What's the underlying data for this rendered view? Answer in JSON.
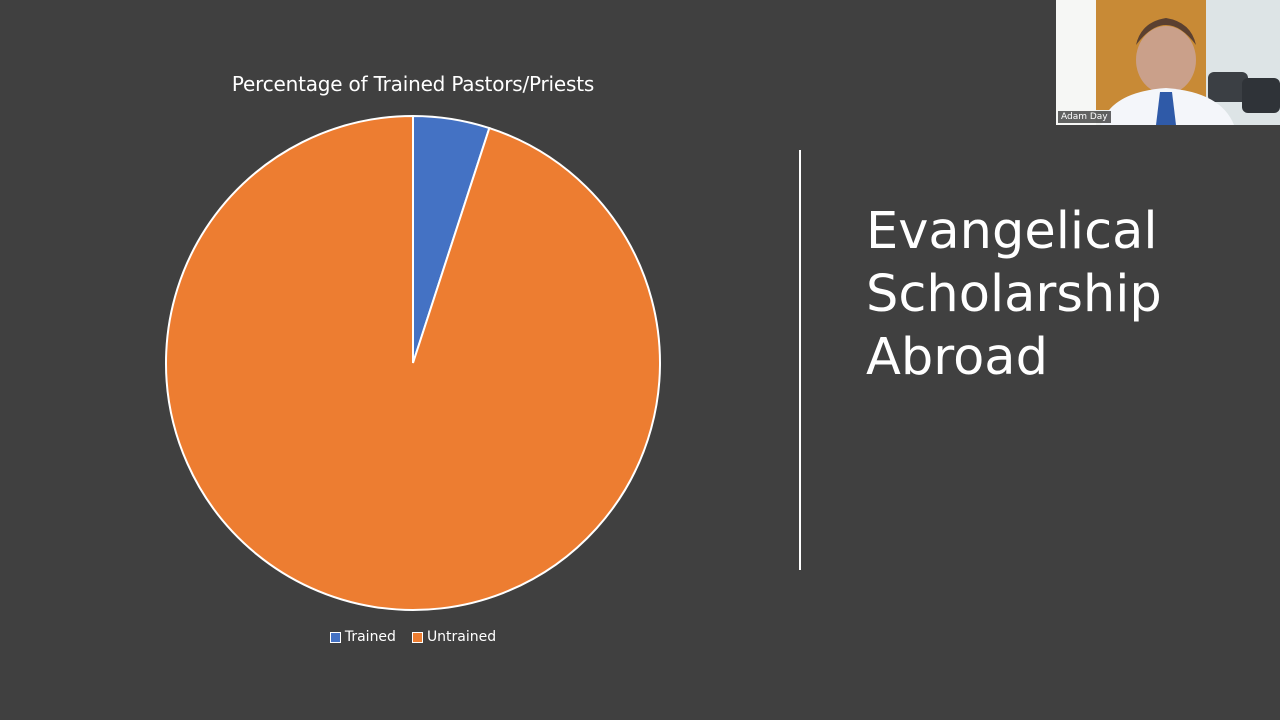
{
  "slide": {
    "heading_lines": [
      "Evangelical",
      "Scholarship",
      "Abroad"
    ]
  },
  "chart_data": {
    "type": "pie",
    "title": "Percentage of Trained Pastors/Priests",
    "categories": [
      "Trained",
      "Untrained"
    ],
    "values": [
      5,
      95
    ],
    "colors": [
      "#4472c4",
      "#ed7d31"
    ],
    "legend_position": "bottom"
  },
  "video": {
    "participant_name": "Adam Day"
  }
}
